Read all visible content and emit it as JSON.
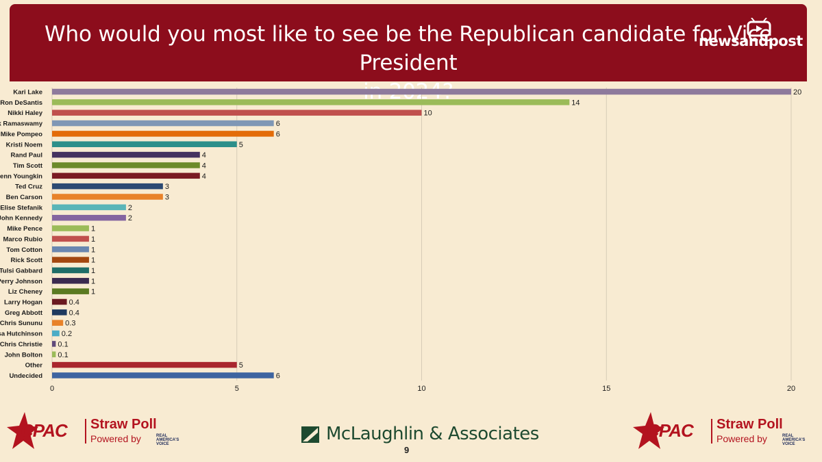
{
  "header": {
    "title_line1": "Who would you most like to see be the Republican candidate for Vice President",
    "title_line2": "in 2024?"
  },
  "watermark": {
    "text": "newsandpost",
    "icon": "tv-icon"
  },
  "chart_data": {
    "type": "bar",
    "orientation": "horizontal",
    "title": "Who would you most like to see be the Republican candidate for Vice President in 2024?",
    "categories": [
      "Kari Lake",
      "Ron DeSantis",
      "Nikki Haley",
      "Vivek Ramaswamy",
      "Mike Pompeo",
      "Kristi Noem",
      "Rand Paul",
      "Tim Scott",
      "Glenn Youngkin",
      "Ted Cruz",
      "Ben Carson",
      "Elise Stefanik",
      "John Kennedy",
      "Mike Pence",
      "Marco Rubio",
      "Tom Cotton",
      "Rick Scott",
      "Tulsi Gabbard",
      "Perry Johnson",
      "Liz Cheney",
      "Larry Hogan",
      "Greg Abbott",
      "Chris Sununu",
      "Asa Hutchinson",
      "Chris Christie",
      "John Bolton",
      "Other",
      "Undecided"
    ],
    "values": [
      20,
      14,
      10,
      6,
      6,
      5,
      4,
      4,
      4,
      3,
      3,
      2,
      2,
      1,
      1,
      1,
      1,
      1,
      1,
      1,
      0.4,
      0.4,
      0.3,
      0.2,
      0.1,
      0.1,
      5,
      6
    ],
    "colors": [
      "#8e7a9c",
      "#9bbb59",
      "#c0504d",
      "#7f97b5",
      "#e36c09",
      "#2d8f8a",
      "#45325f",
      "#6d8a2a",
      "#7a1a22",
      "#2c4a73",
      "#e8822a",
      "#5ab5b8",
      "#8464a0",
      "#9bbb59",
      "#c0504d",
      "#6a87b0",
      "#a3470f",
      "#1f6d68",
      "#3a2a50",
      "#5b7a22",
      "#6b1a20",
      "#1f3a5f",
      "#e8822a",
      "#4bacc6",
      "#604a7b",
      "#9bbb59",
      "#a9262e",
      "#3e64a0"
    ],
    "xlim": [
      0,
      20
    ],
    "xticks": [
      0,
      5,
      10,
      15,
      20
    ],
    "grid": true,
    "data_labels": true
  },
  "footer": {
    "cpac_logo": "CPAC",
    "straw_poll": "Straw Poll",
    "powered_by": "Powered by",
    "rav_line1": "REAL",
    "rav_line2": "AMERICA'S",
    "rav_line3": "VOICE",
    "pollster": "McLaughlin & Associates",
    "page_number": "9"
  }
}
